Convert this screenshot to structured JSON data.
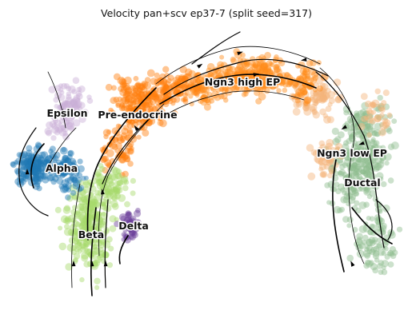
{
  "chart_data": {
    "type": "scatter",
    "title": "Velocity pan+scv ep37-7 (split seed=317)",
    "xlabel": "",
    "ylabel": "",
    "axes_visible": false,
    "grid": false,
    "legend": "on data",
    "overlay": "velocity streamlines with arrowheads",
    "clusters": [
      {
        "name": "Ductal",
        "color": "#8fbc8f"
      },
      {
        "name": "Ngn3 low EP",
        "color": "#f4b47a"
      },
      {
        "name": "Ngn3 high EP",
        "color": "#ff8c1a"
      },
      {
        "name": "Pre-endocrine",
        "color": "#ff7f0e"
      },
      {
        "name": "Beta",
        "color": "#a6d96a"
      },
      {
        "name": "Alpha",
        "color": "#1f77b4"
      },
      {
        "name": "Delta",
        "color": "#6a3d9a"
      },
      {
        "name": "Epsilon",
        "color": "#c9b0d8"
      }
    ]
  }
}
